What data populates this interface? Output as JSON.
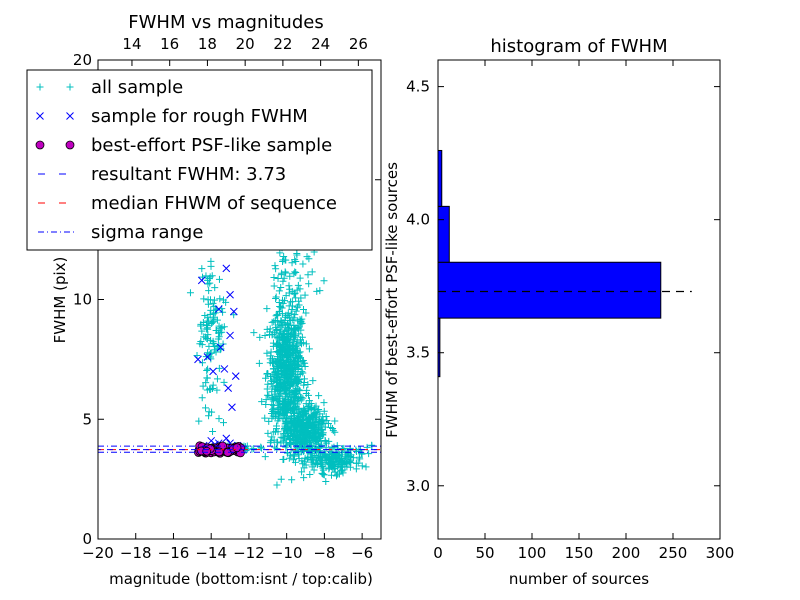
{
  "chart_data": [
    {
      "type": "scatter",
      "title": "FWHM vs magnitudes",
      "xlabel": "magnitude (bottom:isnt / top:calib)",
      "ylabel": "FWHM (pix)",
      "xlim": [
        -20,
        -5
      ],
      "ylim": [
        0,
        20
      ],
      "top_xlim": [
        12.2,
        27.2
      ],
      "x_ticks": [
        "−20",
        "−18",
        "−16",
        "−14",
        "−12",
        "−10",
        "−8",
        "−6"
      ],
      "x_tick_values": [
        -20,
        -18,
        -16,
        -14,
        -12,
        -10,
        -8,
        -6
      ],
      "top_ticks": [
        "14",
        "16",
        "18",
        "20",
        "22",
        "24",
        "26"
      ],
      "top_tick_values": [
        14,
        16,
        18,
        20,
        22,
        24,
        26
      ],
      "y_ticks": [
        "0",
        "5",
        "10",
        "15",
        "20"
      ],
      "y_tick_values": [
        0,
        5,
        10,
        15,
        20
      ],
      "grid": false,
      "legend_position": "upper-left",
      "legend": [
        {
          "label": "all sample",
          "marker": "+",
          "color": "#00bfbf"
        },
        {
          "label": "sample for rough FWHM",
          "marker": "x",
          "color": "#0000ff"
        },
        {
          "label": "best-effort PSF-like sample",
          "marker": "o",
          "color": "#bf00bf"
        },
        {
          "label": "resultant FWHM: 3.73",
          "marker": "dashed",
          "color": "#0000ff"
        },
        {
          "label": "median FHWM of sequence",
          "marker": "dashed",
          "color": "#ff0000"
        },
        {
          "label": "sigma range",
          "marker": "dashdot",
          "color": "#0000ff"
        }
      ],
      "horizontal_lines": {
        "resultant_fwhm": 3.73,
        "median_fwhm": 3.73,
        "sigma_low": 3.62,
        "sigma_high": 3.88
      },
      "series": [
        {
          "name": "all sample",
          "clusters": [
            {
              "center": [
                -10.0,
                7.0
              ],
              "spread": [
                1.0,
                2.8
              ],
              "n": 700
            },
            {
              "center": [
                -9.0,
                4.5
              ],
              "spread": [
                1.3,
                1.2
              ],
              "n": 400
            },
            {
              "center": [
                -13.0,
                3.8
              ],
              "spread": [
                1.0,
                0.1
              ],
              "n": 160
            },
            {
              "center": [
                -14.0,
                8.5
              ],
              "spread": [
                0.7,
                3.0
              ],
              "n": 120
            },
            {
              "center": [
                -9.5,
                11.5
              ],
              "spread": [
                1.5,
                3.2
              ],
              "n": 90
            },
            {
              "center": [
                -10.0,
                17.0
              ],
              "spread": [
                1.2,
                2.0
              ],
              "n": 25
            },
            {
              "center": [
                -7.5,
                3.3
              ],
              "spread": [
                1.6,
                0.6
              ],
              "n": 180
            }
          ]
        },
        {
          "name": "sample for rough FWHM",
          "points": [
            [
              -14.5,
              10.8
            ],
            [
              -13.2,
              11.3
            ],
            [
              -13.0,
              10.2
            ],
            [
              -12.8,
              9.5
            ],
            [
              -13.6,
              9.6
            ],
            [
              -13.0,
              8.5
            ],
            [
              -13.5,
              8.0
            ],
            [
              -14.2,
              7.6
            ],
            [
              -14.7,
              7.5
            ],
            [
              -13.9,
              7.0
            ],
            [
              -13.3,
              7.1
            ],
            [
              -12.7,
              6.8
            ],
            [
              -13.1,
              6.3
            ],
            [
              -12.9,
              5.5
            ],
            [
              -14.0,
              4.1
            ],
            [
              -13.6,
              4.0
            ],
            [
              -13.2,
              4.2
            ],
            [
              -13.0,
              4.0
            ],
            [
              -13.8,
              3.95
            ],
            [
              -14.4,
              3.9
            ],
            [
              -12.6,
              3.9
            ],
            [
              -13.4,
              3.85
            ],
            [
              -14.1,
              3.85
            ],
            [
              -12.9,
              3.8
            ]
          ]
        },
        {
          "name": "best-effort PSF-like sample",
          "x_range": [
            -14.7,
            -12.4
          ],
          "y_range": [
            3.58,
            3.9
          ],
          "n": 60
        }
      ]
    },
    {
      "type": "bar",
      "orientation": "horizontal",
      "title": "histogram of FWHM",
      "xlabel": "number of sources",
      "ylabel": "FWHM of best-effort PSF-like sources",
      "xlim": [
        0,
        300
      ],
      "ylim": [
        2.8,
        4.6
      ],
      "x_ticks": [
        "0",
        "50",
        "100",
        "150",
        "200",
        "250",
        "300"
      ],
      "x_tick_values": [
        0,
        50,
        100,
        150,
        200,
        250,
        300
      ],
      "y_ticks": [
        "3.0",
        "3.5",
        "4.0",
        "4.5"
      ],
      "y_tick_values": [
        3.0,
        3.5,
        4.0,
        4.5
      ],
      "bin_edges": [
        3.41,
        3.63,
        3.84,
        4.05,
        4.26
      ],
      "counts": [
        2,
        237,
        12,
        4
      ],
      "bar_color": "#0000ff",
      "reference_line": {
        "value": 3.73,
        "style": "dashed",
        "color": "#000000",
        "x_extent": [
          0,
          270
        ]
      }
    }
  ]
}
